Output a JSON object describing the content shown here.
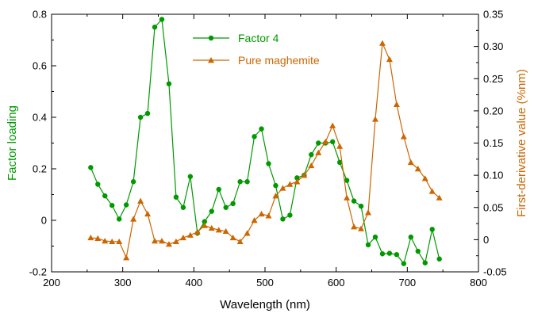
{
  "chart_data": {
    "type": "line",
    "xlabel": "Wavelength (nm)",
    "ylabel_left": "Factor loading",
    "ylabel_right": "First-derivative value (%nm)",
    "xlim": [
      200,
      800
    ],
    "ylim_left": [
      -0.2,
      0.8
    ],
    "ylim_right": [
      -0.05,
      0.35
    ],
    "x_ticks": [
      "200",
      "300",
      "400",
      "500",
      "600",
      "700",
      "800"
    ],
    "y_left_ticks": [
      "-0.2",
      "0",
      "0.2",
      "0.4",
      "0.6",
      "0.8"
    ],
    "y_right_ticks": [
      "-0.05",
      "0",
      "0.05",
      "0.10",
      "0.15",
      "0.20",
      "0.25",
      "0.30",
      "0.35"
    ],
    "legend_position": "top-center",
    "grid": false,
    "x": [
      255,
      265,
      275,
      285,
      295,
      305,
      315,
      325,
      335,
      345,
      355,
      365,
      375,
      385,
      395,
      405,
      415,
      425,
      435,
      445,
      455,
      465,
      475,
      485,
      495,
      505,
      515,
      525,
      535,
      545,
      555,
      565,
      575,
      585,
      595,
      605,
      615,
      625,
      635,
      645,
      655,
      665,
      675,
      685,
      695,
      705,
      715,
      725,
      735,
      745
    ],
    "series": [
      {
        "name": "Factor 4",
        "axis": "left",
        "color": "#009900",
        "marker": "circle",
        "values": [
          0.205,
          0.14,
          0.095,
          0.058,
          0.005,
          0.06,
          0.15,
          0.4,
          0.415,
          0.75,
          0.78,
          0.53,
          0.09,
          0.05,
          0.17,
          -0.05,
          -0.005,
          0.035,
          0.12,
          0.05,
          0.065,
          0.15,
          0.15,
          0.325,
          0.355,
          0.22,
          0.135,
          0.005,
          0.02,
          0.165,
          0.175,
          0.255,
          0.3,
          0.3,
          0.305,
          0.225,
          0.155,
          0.075,
          0.055,
          -0.095,
          -0.065,
          -0.13,
          -0.128,
          -0.133,
          -0.168,
          -0.065,
          -0.12,
          -0.165,
          -0.035,
          -0.15
        ]
      },
      {
        "name": "Pure maghemite",
        "axis": "right",
        "color": "#cc6600",
        "marker": "triangle",
        "values": [
          0.003,
          0.002,
          -0.002,
          -0.003,
          -0.003,
          -0.028,
          0.032,
          0.06,
          0.04,
          -0.002,
          -0.002,
          -0.007,
          -0.003,
          0.003,
          0.007,
          0.012,
          0.022,
          0.018,
          0.015,
          0.013,
          0.003,
          -0.003,
          0.01,
          0.03,
          0.04,
          0.037,
          0.068,
          0.08,
          0.086,
          0.09,
          0.1,
          0.115,
          0.135,
          0.152,
          0.177,
          0.145,
          0.065,
          0.02,
          0.017,
          0.042,
          0.187,
          0.305,
          0.28,
          0.21,
          0.16,
          0.12,
          0.11,
          0.095,
          0.075,
          0.065
        ]
      }
    ]
  }
}
